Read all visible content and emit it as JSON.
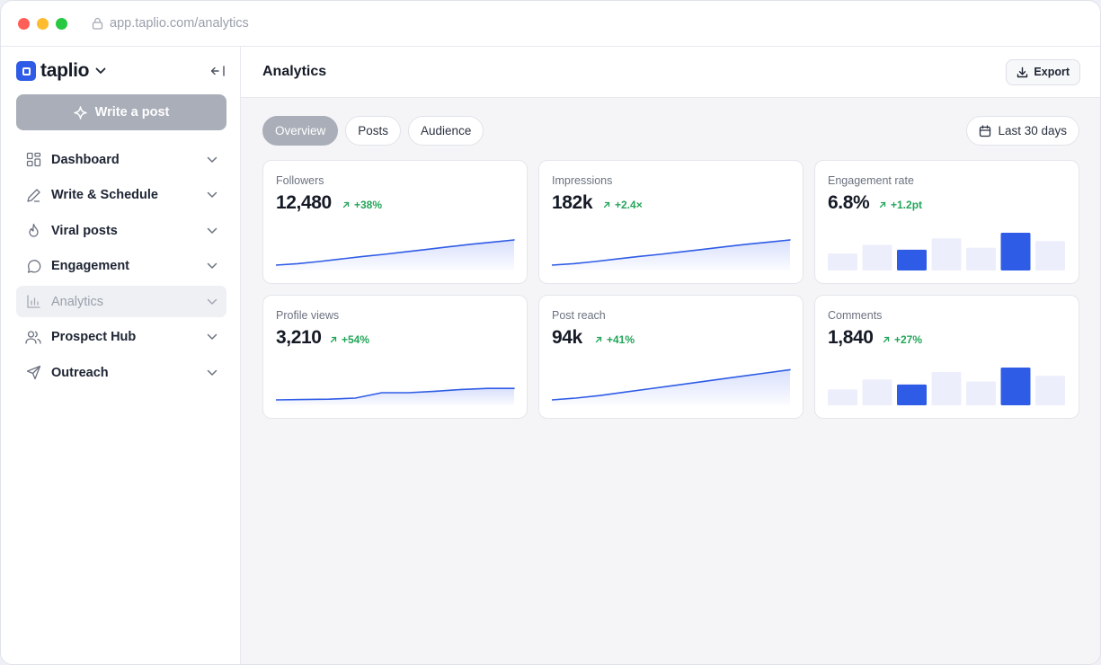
{
  "browser": {
    "url": "app.taplio.com/analytics"
  },
  "brand": {
    "name": "taplio"
  },
  "sidebar": {
    "write_label": "Write a post",
    "items": [
      {
        "label": "Dashboard",
        "icon": "grid-icon"
      },
      {
        "label": "Write & Schedule",
        "icon": "pen-icon"
      },
      {
        "label": "Viral posts",
        "icon": "flame-icon"
      },
      {
        "label": "Engagement",
        "icon": "chat-bubble-icon"
      },
      {
        "label": "Analytics",
        "icon": "bar-chart-icon",
        "active": true
      },
      {
        "label": "Prospect Hub",
        "icon": "users-icon"
      },
      {
        "label": "Outreach",
        "icon": "send-icon"
      }
    ]
  },
  "header": {
    "title": "Analytics",
    "export_label": "Export"
  },
  "tabs": [
    {
      "label": "Overview",
      "active": true
    },
    {
      "label": "Posts"
    },
    {
      "label": "Audience"
    }
  ],
  "date_range": {
    "label": "Last 30 days"
  },
  "colors": {
    "accent": "#2f5ce6",
    "positive": "#23a55a",
    "bar_light": "#eceefb"
  },
  "cards": [
    {
      "label": "Followers",
      "value": "12,480",
      "delta": "+38%",
      "chart_data": {
        "type": "area",
        "values": [
          0.0,
          0.04,
          0.1,
          0.17,
          0.24,
          0.3,
          0.37,
          0.44,
          0.51,
          0.58,
          0.64,
          0.7
        ]
      }
    },
    {
      "label": "Impressions",
      "value": "182k",
      "delta": "+2.4×",
      "chart_data": {
        "type": "area",
        "values": [
          0.0,
          0.04,
          0.1,
          0.17,
          0.24,
          0.3,
          0.37,
          0.44,
          0.51,
          0.58,
          0.64,
          0.7
        ]
      }
    },
    {
      "label": "Engagement rate",
      "value": "6.8%",
      "delta": "+1.2pt",
      "chart_data": {
        "type": "bar",
        "values": [
          0.45,
          0.68,
          0.55,
          0.85,
          0.6,
          1.0,
          0.78
        ],
        "highlight": [
          2,
          5
        ]
      }
    },
    {
      "label": "Profile views",
      "value": "3,210",
      "delta": "+54%",
      "chart_data": {
        "type": "area",
        "values": [
          0.0,
          0.01,
          0.02,
          0.05,
          0.2,
          0.2,
          0.24,
          0.29,
          0.32,
          0.32
        ]
      }
    },
    {
      "label": "Post reach",
      "value": "94k",
      "delta": "+41%",
      "chart_data": {
        "type": "area",
        "values": [
          0.0,
          0.05,
          0.12,
          0.21,
          0.3,
          0.39,
          0.48,
          0.57,
          0.66,
          0.75,
          0.84
        ]
      }
    },
    {
      "label": "Comments",
      "value": "1,840",
      "delta": "+27%",
      "chart_data": {
        "type": "bar",
        "values": [
          0.42,
          0.68,
          0.55,
          0.88,
          0.63,
          1.0,
          0.78
        ],
        "highlight": [
          2,
          5
        ]
      }
    }
  ]
}
